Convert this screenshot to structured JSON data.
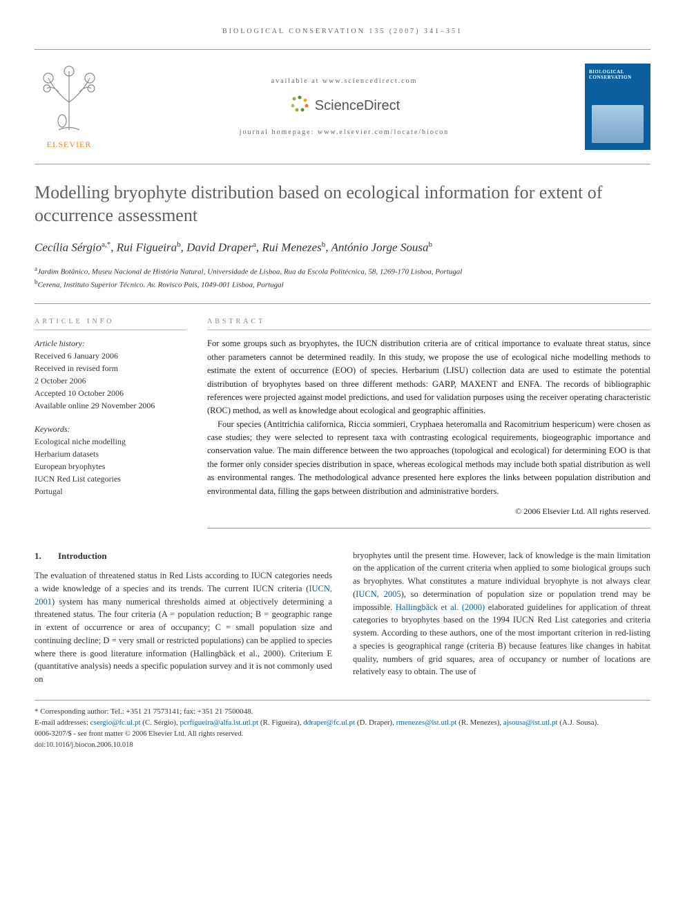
{
  "running_header": "BIOLOGICAL CONSERVATION 135 (2007) 341–351",
  "header": {
    "available_at": "available at www.sciencedirect.com",
    "sd_name": "ScienceDirect",
    "homepage": "journal homepage: www.elsevier.com/locate/biocon",
    "publisher_name": "ELSEVIER",
    "cover_title": "BIOLOGICAL CONSERVATION"
  },
  "title": "Modelling bryophyte distribution based on ecological information for extent of occurrence assessment",
  "authors_html": "Cecília Sérgio<sup>a,*</sup>, Rui Figueira<sup>b</sup>, David Draper<sup>a</sup>, Rui Menezes<sup>b</sup>, António Jorge Sousa<sup>b</sup>",
  "affiliations": [
    {
      "sup": "a",
      "text": "Jardim Botânico, Museu Nacional de História Natural, Universidade de Lisboa, Rua da Escola Politécnica, 58, 1269-170 Lisboa, Portugal"
    },
    {
      "sup": "b",
      "text": "Cerena, Instituto Superior Técnico. Av. Rovisco Pais, 1049-001 Lisboa, Portugal"
    }
  ],
  "info": {
    "head": "ARTICLE INFO",
    "history_label": "Article history:",
    "history": [
      "Received 6 January 2006",
      "Received in revised form",
      "2 October 2006",
      "Accepted 10 October 2006",
      "Available online 29 November 2006"
    ],
    "keywords_label": "Keywords:",
    "keywords": [
      "Ecological niche modelling",
      "Herbarium datasets",
      "European bryophytes",
      "IUCN Red List categories",
      "Portugal"
    ]
  },
  "abstract": {
    "head": "ABSTRACT",
    "p1": "For some groups such as bryophytes, the IUCN distribution criteria are of critical importance to evaluate threat status, since other parameters cannot be determined readily. In this study, we propose the use of ecological niche modelling methods to estimate the extent of occurrence (EOO) of species. Herbarium (LISU) collection data are used to estimate the potential distribution of bryophytes based on three different methods: GARP, MAXENT and ENFA. The records of bibliographic references were projected against model predictions, and used for validation purposes using the receiver operating characteristic (ROC) method, as well as knowledge about ecological and geographic affinities.",
    "p2": "Four species (Antitrichia californica, Riccia sommieri, Cryphaea heteromalla and Racomitrium hespericum) were chosen as case studies; they were selected to represent taxa with contrasting ecological requirements, biogeographic importance and conservation value. The main difference between the two approaches (topological and ecological) for determining EOO is that the former only consider species distribution in space, whereas ecological methods may include both spatial distribution as well as environmental ranges. The methodological advance presented here explores the links between population distribution and environmental data, filling the gaps between distribution and administrative borders.",
    "copyright": "© 2006 Elsevier Ltd. All rights reserved."
  },
  "section1": {
    "num": "1.",
    "title": "Introduction",
    "col1": "The evaluation of threatened status in Red Lists according to IUCN categories needs a wide knowledge of a species and its trends. The current IUCN criteria (IUCN, 2001) system has many numerical thresholds aimed at objectively determining a threatened status. The four criteria (A = population reduction; B = geographic range in extent of occurrence or area of occupancy; C = small population size and continuing decline; D = very small or restricted populations) can be applied to species where there is good literature information (Hallingbäck et al., 2000). Criterium E (quantitative analysis) needs a specific population survey and it is not commonly used on",
    "col2": "bryophytes until the present time. However, lack of knowledge is the main limitation on the application of the current criteria when applied to some biological groups such as bryophytes. What constitutes a mature individual bryophyte is not always clear (IUCN, 2005), so determination of population size or population trend may be impossible. Hallingbäck et al. (2000) elaborated guidelines for application of threat categories to bryophytes based on the 1994 IUCN Red List categories and criteria system. According to these authors, one of the most important criterion in red-listing a species is geographical range (criteria B) because features like changes in habitat quality, numbers of grid squares, area of occupancy or number of locations are relatively easy to obtain. The use of"
  },
  "footnotes": {
    "corr": "* Corresponding author: Tel.: +351 21 7573141; fax: +351 21 7500048.",
    "emails_label": "E-mail addresses: ",
    "emails": [
      {
        "addr": "csergio@fc.ul.pt",
        "who": "(C. Sérgio)"
      },
      {
        "addr": "pcrfigueira@alfa.ist.utl.pt",
        "who": "(R. Figueira)"
      },
      {
        "addr": "ddraper@fc.ul.pt",
        "who": "(D. Draper)"
      },
      {
        "addr": "rmenezes@ist.utl.pt",
        "who": "(R. Menezes)"
      },
      {
        "addr": "ajsousa@ist.utl.pt",
        "who": "(A.J. Sousa)"
      }
    ],
    "issn": "0006-3207/$ - see front matter © 2006 Elsevier Ltd. All rights reserved.",
    "doi": "doi:10.1016/j.biocon.2006.10.018"
  },
  "colors": {
    "link": "#0b5f9e",
    "elsevier_orange": "#ff8200",
    "title_gray": "#606060",
    "rule": "#999999",
    "text": "#333333"
  }
}
